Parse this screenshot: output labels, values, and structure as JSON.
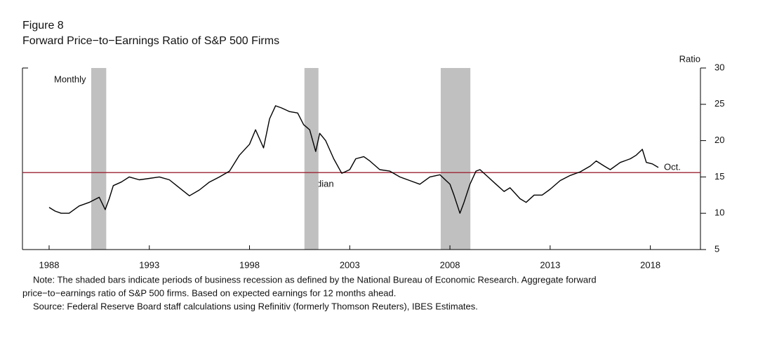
{
  "chart_data": {
    "type": "line",
    "figure_label": "Figure 8",
    "title": "Forward Price−to−Earnings Ratio of S&P 500 Firms",
    "y_axis_label": "Ratio",
    "frequency_label": "Monthly",
    "median_label": "Median",
    "end_label": "Oct.",
    "note_lines": [
      "Note: The shaded bars indicate periods of business recession as defined by the National Bureau of Economic Research. Aggregate forward",
      "price−to−earnings ratio of S&P 500 firms. Based on expected earnings for 12 months ahead."
    ],
    "source": "Source: Federal Reserve Board staff calculations using Refinitiv (formerly Thomson Reuters), IBES Estimates.",
    "color": "#000000",
    "median_color": "#9b2335",
    "recession_color": "#c0c0c0",
    "median": 15.6,
    "recessions": [
      [
        1990.1,
        1990.85
      ],
      [
        2000.74,
        2001.44
      ],
      [
        2007.54,
        2009.02
      ]
    ],
    "x": [
      1988.0,
      1988.3,
      1988.6,
      1989.0,
      1989.5,
      1990.0,
      1990.5,
      1990.8,
      1991.0,
      1991.2,
      1991.6,
      1992.0,
      1992.5,
      1993.0,
      1993.5,
      1994.0,
      1994.5,
      1995.0,
      1995.5,
      1996.0,
      1996.5,
      1997.0,
      1997.5,
      1998.0,
      1998.3,
      1998.7,
      1999.0,
      1999.3,
      1999.6,
      2000.0,
      2000.4,
      2000.7,
      2001.0,
      2001.3,
      2001.5,
      2001.8,
      2002.2,
      2002.6,
      2003.0,
      2003.3,
      2003.7,
      2004.0,
      2004.5,
      2005.0,
      2005.5,
      2006.0,
      2006.5,
      2007.0,
      2007.5,
      2008.0,
      2008.2,
      2008.5,
      2008.7,
      2009.0,
      2009.3,
      2009.5,
      2009.9,
      2010.3,
      2010.7,
      2011.0,
      2011.5,
      2011.8,
      2012.2,
      2012.6,
      2013.0,
      2013.5,
      2014.0,
      2014.5,
      2015.0,
      2015.3,
      2015.7,
      2016.0,
      2016.5,
      2017.0,
      2017.3,
      2017.6,
      2017.8,
      2018.1,
      2018.4
    ],
    "values": [
      10.8,
      10.3,
      10.0,
      10.0,
      11.0,
      11.5,
      12.2,
      10.5,
      12.0,
      13.8,
      14.3,
      15.0,
      14.6,
      14.8,
      15.0,
      14.6,
      13.5,
      12.4,
      13.2,
      14.3,
      15.0,
      15.8,
      18.0,
      19.5,
      21.5,
      19.0,
      23.0,
      24.8,
      24.5,
      24.0,
      23.8,
      22.2,
      21.5,
      18.5,
      21.0,
      20.0,
      17.5,
      15.5,
      16.0,
      17.5,
      17.8,
      17.2,
      16.0,
      15.8,
      15.0,
      14.5,
      14.0,
      15.0,
      15.3,
      14.0,
      12.5,
      10.0,
      11.5,
      14.0,
      15.8,
      16.0,
      15.0,
      14.0,
      13.0,
      13.5,
      12.0,
      11.5,
      12.5,
      12.5,
      13.3,
      14.5,
      15.2,
      15.7,
      16.5,
      17.2,
      16.5,
      16.0,
      17.0,
      17.5,
      18.0,
      18.8,
      17.0,
      16.8,
      16.3
    ],
    "xlim": [
      1986.67,
      2020.5
    ],
    "xticks": [
      1988,
      1993,
      1998,
      2003,
      2008,
      2013,
      2018
    ],
    "ylim": [
      5,
      30
    ],
    "yticks": [
      5,
      10,
      15,
      20,
      25,
      30
    ]
  }
}
